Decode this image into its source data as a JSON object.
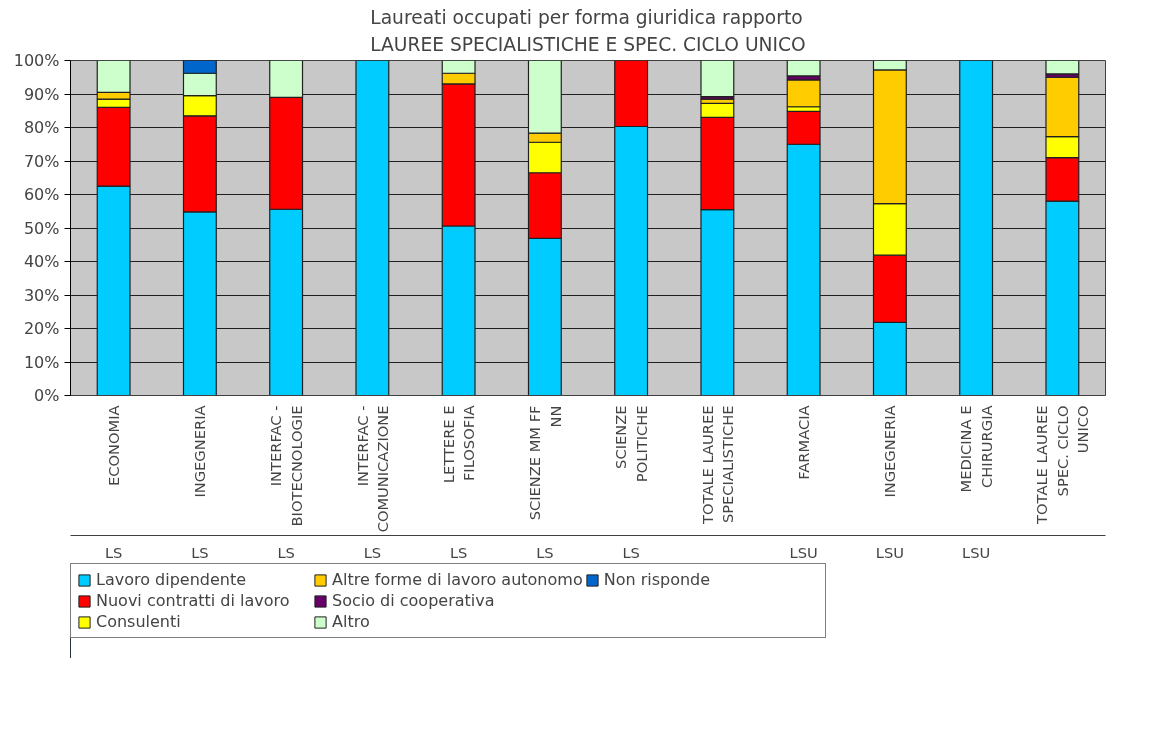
{
  "chart_data": {
    "type": "bar",
    "stacked": true,
    "title": "Laureati occupati per forma giuridica rapporto\nLAUREE SPECIALISTICHE E SPEC. CICLO UNICO",
    "categories": [
      "ECONOMIA",
      "INGEGNERIA",
      "INTERFAC - BIOTECNOLOGIE",
      "INTERFAC - COMUNICAZIONE",
      "LETTERE E FILOSOFIA",
      "SCIENZE MM FF NN",
      "SCIENZE POLITICHE",
      "TOTALE LAUREE SPECIALISTICHE",
      "FARMACIA",
      "INGEGNERIA",
      "MEDICINA E CHIRURGIA",
      "TOTALE LAUREE SPEC. CICLO UNICO"
    ],
    "series": [
      {
        "name": "Lavoro dipendente",
        "color": "#00ccff",
        "values": [
          62.5,
          54.8,
          55.6,
          100,
          50.6,
          46.9,
          80.3,
          55.5,
          75,
          21.8,
          100,
          58
        ]
      },
      {
        "name": "Nuovi contratti di lavoro",
        "color": "#ff0000",
        "values": [
          23.5,
          28.7,
          33.4,
          null,
          42.4,
          19.6,
          19.7,
          27.5,
          9.8,
          20.1,
          null,
          13
        ]
      },
      {
        "name": "Consulenti",
        "color": "#ffff00",
        "values": [
          2.5,
          6,
          null,
          null,
          null,
          9.1,
          null,
          4.2,
          1.4,
          15.4,
          null,
          6.3
        ]
      },
      {
        "name": "Altre forme di lavoro autonomo",
        "color": "#ffcc00",
        "values": [
          2,
          null,
          null,
          null,
          3.2,
          2.7,
          null,
          1.3,
          8,
          39.9,
          null,
          17.7
        ]
      },
      {
        "name": "Socio di cooperativa",
        "color": "#660066",
        "values": [
          null,
          null,
          null,
          null,
          null,
          null,
          null,
          0.7,
          1.2,
          null,
          null,
          1
        ]
      },
      {
        "name": "Altro",
        "color": "#ccffcc",
        "values": [
          9.5,
          6.7,
          11,
          null,
          3.8,
          21.7,
          null,
          10.8,
          4.6,
          2.8,
          null,
          4
        ]
      },
      {
        "name": "Non risponde",
        "color": "#0066cc",
        "values": [
          null,
          3.8,
          null,
          null,
          null,
          null,
          null,
          null,
          null,
          null,
          null,
          null
        ]
      }
    ],
    "ylim": [
      0,
      100
    ],
    "yticks": [
      {
        "value": 0,
        "label": "0%"
      },
      {
        "value": 10,
        "label": "10%"
      },
      {
        "value": 20,
        "label": "20%"
      },
      {
        "value": 30,
        "label": "30%"
      },
      {
        "value": 40,
        "label": "40%"
      },
      {
        "value": 50,
        "label": "50%"
      },
      {
        "value": 60,
        "label": "60%"
      },
      {
        "value": 70,
        "label": "70%"
      },
      {
        "value": 80,
        "label": "80%"
      },
      {
        "value": 90,
        "label": "90%"
      },
      {
        "value": 100,
        "label": "100%"
      }
    ],
    "grid": "y",
    "legend": "bottom",
    "annotations": [
      "LS",
      "LS",
      "LS",
      "LS",
      "LS",
      "LS",
      "LS",
      null,
      "LSU",
      "LSU",
      "LSU",
      null
    ]
  }
}
